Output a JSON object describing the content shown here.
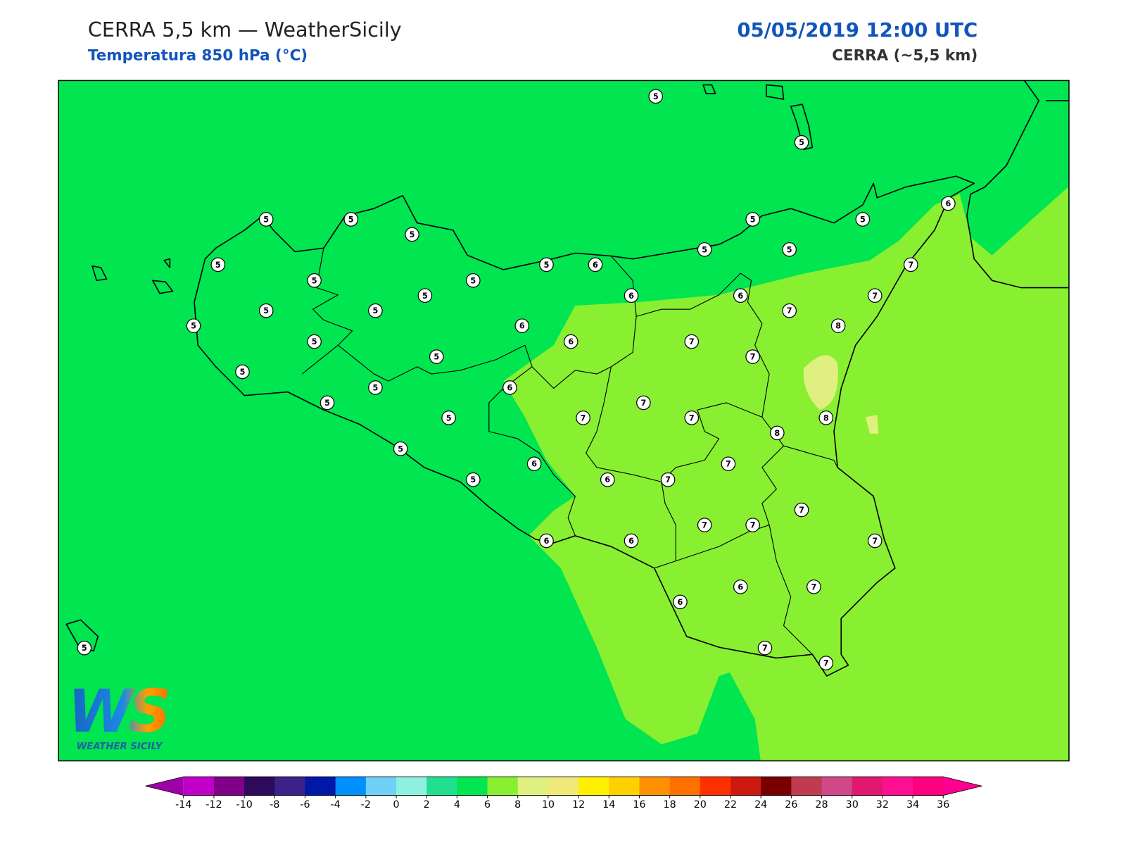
{
  "header": {
    "title": "CERRA 5,5 km — WeatherSicily",
    "subtitle": "Temperatura 850 hPa (°C)",
    "date": "05/05/2019 12:00 UTC",
    "model": "CERRA (~5,5 km)"
  },
  "map": {
    "stations": [
      5,
      5,
      5,
      5,
      5,
      5,
      5,
      5,
      5,
      6,
      5,
      5,
      5,
      5,
      6,
      7,
      6,
      6,
      7,
      7,
      8,
      5,
      5,
      5,
      5,
      6,
      6,
      7,
      7,
      5,
      5,
      5,
      5,
      6,
      7,
      7,
      7,
      8,
      8,
      5,
      5,
      5,
      6,
      7,
      6,
      7,
      5,
      7,
      7,
      7,
      6,
      6,
      7,
      6,
      7,
      6,
      7,
      7,
      5
    ]
  },
  "colorbar": {
    "ticks": [
      -14,
      -12,
      -10,
      -8,
      -6,
      -4,
      -2,
      0,
      2,
      4,
      6,
      8,
      10,
      12,
      14,
      16,
      18,
      20,
      22,
      24,
      26,
      28,
      30,
      32,
      34,
      36
    ],
    "colors": [
      "#c000c8",
      "#800088",
      "#2e0a5a",
      "#3c2288",
      "#0018a8",
      "#0090ff",
      "#70d0f5",
      "#90f0e0",
      "#20e090",
      "#00e550",
      "#88f030",
      "#e0f080",
      "#f0e878",
      "#fff000",
      "#ffd000",
      "#ff9000",
      "#ff7000",
      "#ff3000",
      "#cc1a10",
      "#780000",
      "#c03a50",
      "#d04888",
      "#e01870",
      "#ff1090",
      "#ff0080"
    ],
    "under": "#a000a8",
    "over": "#ff0090"
  },
  "logo": {
    "mark": "WS",
    "name": "WEATHER SICILY"
  }
}
